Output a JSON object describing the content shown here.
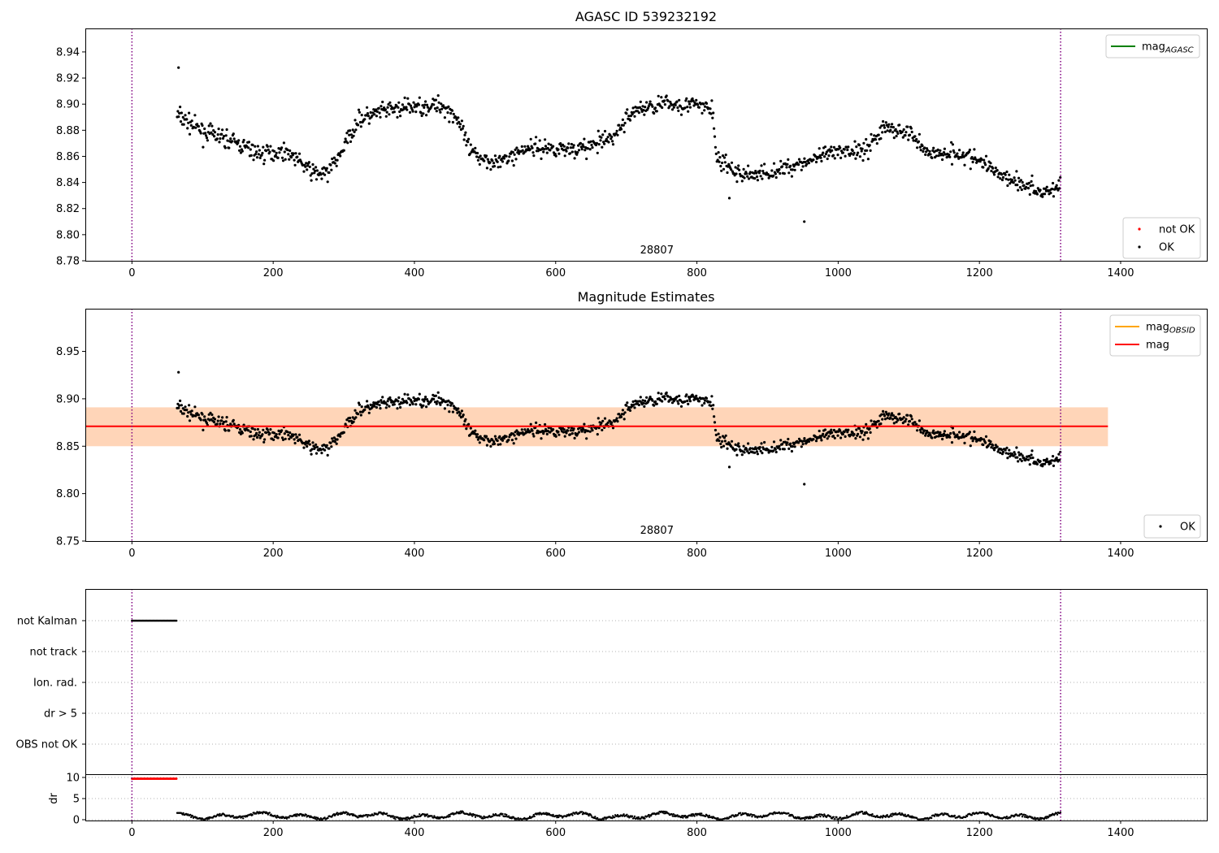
{
  "chart_data": [
    {
      "type": "scatter",
      "title": "AGASC ID 539232192",
      "xlim": [
        -66,
        1522
      ],
      "ylim": [
        8.78,
        8.958
      ],
      "xticks": [
        0,
        200,
        400,
        600,
        800,
        1000,
        1200,
        1400
      ],
      "yticks": [
        8.78,
        8.8,
        8.82,
        8.84,
        8.86,
        8.88,
        8.9,
        8.92,
        8.94
      ],
      "ytick_decimals": 2,
      "obsid_label": "28807",
      "obsid_label_x": 657,
      "vlines": [
        0,
        1315
      ],
      "legend_top": [
        {
          "label": "mag",
          "sub": "AGASC",
          "color": "#008000"
        }
      ],
      "legend_bottom": [
        {
          "label": "not OK",
          "color": "#ff0000"
        },
        {
          "label": "OK",
          "color": "#000000"
        }
      ],
      "show_band": false
    },
    {
      "type": "scatter",
      "title": "Magnitude Estimates",
      "xlim": [
        -66,
        1522
      ],
      "ylim": [
        8.75,
        8.995
      ],
      "xticks": [
        0,
        200,
        400,
        600,
        800,
        1000,
        1200,
        1400
      ],
      "yticks": [
        8.75,
        8.8,
        8.85,
        8.9,
        8.95
      ],
      "ytick_decimals": 2,
      "obsid_label": "28807",
      "obsid_label_x": 657,
      "vlines": [
        0,
        1315
      ],
      "mag": 8.871,
      "band": [
        8.85,
        8.891
      ],
      "band_xrange": [
        -66,
        1382
      ],
      "legend_top": [
        {
          "label": "mag",
          "sub": "OBSID",
          "color": "#ffa500"
        },
        {
          "label": "mag",
          "sub": "",
          "color": "#ff0000"
        }
      ],
      "legend_bottom": [
        {
          "label": "OK",
          "color": "#000000"
        }
      ],
      "show_band": true
    },
    {
      "type": "scatter",
      "title": "",
      "flags": [
        "not Kalman",
        "not track",
        "Ion. rad.",
        "dr > 5",
        "OBS not OK"
      ],
      "flag_points": {
        "not Kalman": [
          0,
          63
        ]
      },
      "dr_ylabel": "dr",
      "dr_yticks": [
        0,
        5,
        10
      ],
      "dr_flag_value": 9.7,
      "dr_flag_xrange": [
        0,
        63
      ],
      "xticks": [
        0,
        200,
        400,
        600,
        800,
        1000,
        1200,
        1400
      ],
      "vlines": [
        0,
        1315
      ]
    }
  ]
}
